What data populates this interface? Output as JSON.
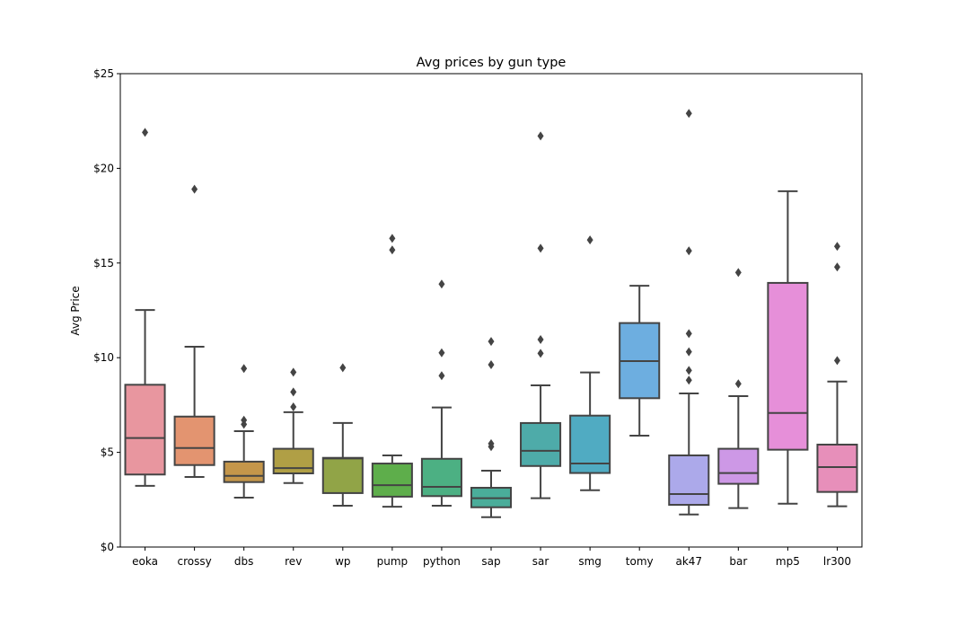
{
  "chart_data": {
    "type": "box",
    "title": "Avg prices by gun type",
    "xlabel": "",
    "ylabel": "Avg Price",
    "ylim": [
      0,
      25
    ],
    "yticks": [
      0,
      5,
      10,
      15,
      20,
      25
    ],
    "ytick_labels": [
      "$0",
      "$5",
      "$10",
      "$15",
      "$20",
      "$25"
    ],
    "grid": false,
    "categories": [
      "eoka",
      "crossy",
      "dbs",
      "rev",
      "wp",
      "pump",
      "python",
      "sap",
      "sar",
      "smg",
      "tomy",
      "ak47",
      "bar",
      "mp5",
      "lr300"
    ],
    "colors": [
      "#e8969f",
      "#e39470",
      "#c4964a",
      "#b09f45",
      "#91a447",
      "#5eae4b",
      "#4cb083",
      "#4aad9a",
      "#4eaba9",
      "#50abc2",
      "#6daee0",
      "#aca9ea",
      "#cd98e6",
      "#e68fd9",
      "#e78fba"
    ],
    "boxes": [
      {
        "whisker_low": 3.23,
        "q1": 3.83,
        "median": 5.76,
        "q3": 8.57,
        "whisker_high": 12.52,
        "outliers": [
          21.9
        ]
      },
      {
        "whisker_low": 3.7,
        "q1": 4.33,
        "median": 5.23,
        "q3": 6.89,
        "whisker_high": 10.58,
        "outliers": [
          18.9
        ]
      },
      {
        "whisker_low": 2.61,
        "q1": 3.43,
        "median": 3.76,
        "q3": 4.51,
        "whisker_high": 6.12,
        "outliers": [
          9.43,
          6.7,
          6.48
        ]
      },
      {
        "whisker_low": 3.38,
        "q1": 3.89,
        "median": 4.17,
        "q3": 5.19,
        "whisker_high": 7.12,
        "outliers": [
          9.23,
          8.19,
          7.4
        ]
      },
      {
        "whisker_low": 2.18,
        "q1": 2.85,
        "median": 4.68,
        "q3": 4.71,
        "whisker_high": 6.55,
        "outliers": [
          9.47
        ]
      },
      {
        "whisker_low": 2.13,
        "q1": 2.66,
        "median": 3.27,
        "q3": 4.41,
        "whisker_high": 4.84,
        "outliers": [
          16.3,
          15.69
        ]
      },
      {
        "whisker_low": 2.18,
        "q1": 2.69,
        "median": 3.18,
        "q3": 4.66,
        "whisker_high": 7.37,
        "outliers": [
          13.89,
          10.26,
          9.05
        ]
      },
      {
        "whisker_low": 1.58,
        "q1": 2.1,
        "median": 2.58,
        "q3": 3.13,
        "whisker_high": 4.03,
        "outliers": [
          10.86,
          9.63,
          5.46,
          5.3
        ]
      },
      {
        "whisker_low": 2.58,
        "q1": 4.28,
        "median": 5.08,
        "q3": 6.55,
        "whisker_high": 8.54,
        "outliers": [
          21.71,
          15.78,
          10.96,
          10.23
        ]
      },
      {
        "whisker_low": 3.0,
        "q1": 3.91,
        "median": 4.41,
        "q3": 6.94,
        "whisker_high": 9.22,
        "outliers": [
          16.22
        ]
      },
      {
        "whisker_low": 5.88,
        "q1": 7.86,
        "median": 9.82,
        "q3": 11.83,
        "whisker_high": 13.8,
        "outliers": []
      },
      {
        "whisker_low": 1.72,
        "q1": 2.23,
        "median": 2.8,
        "q3": 4.84,
        "whisker_high": 8.11,
        "outliers": [
          22.9,
          15.64,
          11.27,
          10.31,
          9.33,
          8.81
        ]
      },
      {
        "whisker_low": 2.06,
        "q1": 3.34,
        "median": 3.91,
        "q3": 5.19,
        "whisker_high": 7.97,
        "outliers": [
          14.5,
          8.62
        ]
      },
      {
        "whisker_low": 2.29,
        "q1": 5.14,
        "median": 7.08,
        "q3": 13.95,
        "whisker_high": 18.79,
        "outliers": []
      },
      {
        "whisker_low": 2.15,
        "q1": 2.91,
        "median": 4.22,
        "q3": 5.41,
        "whisker_high": 8.74,
        "outliers": [
          15.88,
          14.79,
          9.85
        ]
      }
    ]
  }
}
